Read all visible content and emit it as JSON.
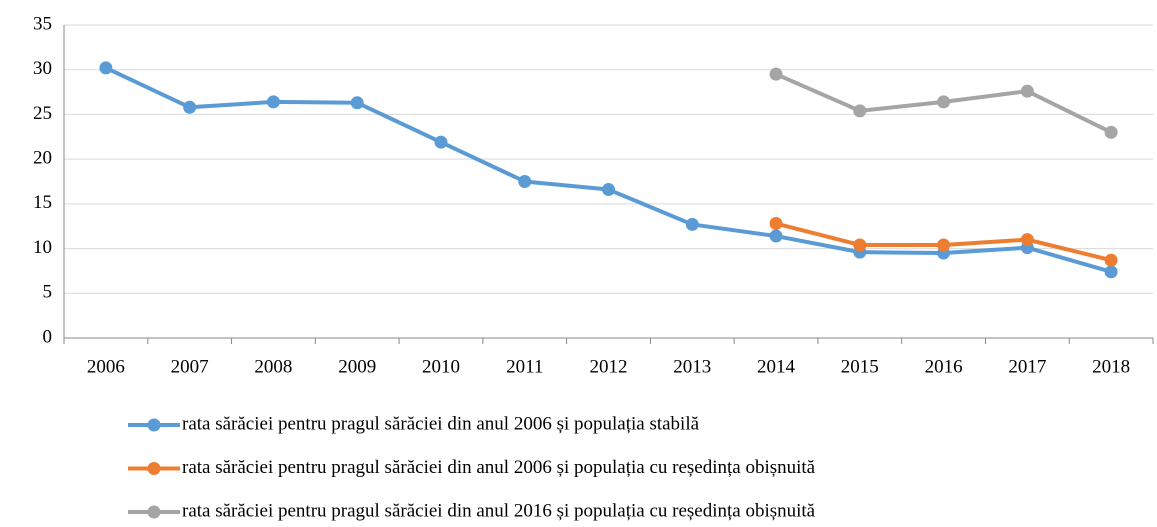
{
  "chart_data": {
    "type": "line",
    "categories": [
      "2006",
      "2007",
      "2008",
      "2009",
      "2010",
      "2011",
      "2012",
      "2013",
      "2014",
      "2015",
      "2016",
      "2017",
      "2018"
    ],
    "series": [
      {
        "name": "rata sărăciei pentru pragul sărăciei din anul 2006 și populația stabilă",
        "color": "#5b9bd5",
        "values": [
          30.2,
          25.8,
          26.4,
          26.3,
          21.9,
          17.5,
          16.6,
          12.7,
          11.4,
          9.6,
          9.5,
          10.1,
          7.4
        ]
      },
      {
        "name": "rata sărăciei pentru pragul sărăciei din anul 2006 și populația cu reședința obișnuită",
        "color": "#ed7d31",
        "values": [
          null,
          null,
          null,
          null,
          null,
          null,
          null,
          null,
          12.8,
          10.4,
          10.4,
          11.0,
          8.7
        ]
      },
      {
        "name": "rata sărăciei pentru pragul sărăciei din anul 2016 și populația cu reședința obișnuită",
        "color": "#a5a5a5",
        "values": [
          null,
          null,
          null,
          null,
          null,
          null,
          null,
          null,
          29.5,
          25.4,
          26.4,
          27.6,
          23.0
        ]
      }
    ],
    "ylim": [
      0,
      35
    ],
    "yticks": [
      0,
      5,
      10,
      15,
      20,
      25,
      30,
      35
    ],
    "grid": true
  }
}
